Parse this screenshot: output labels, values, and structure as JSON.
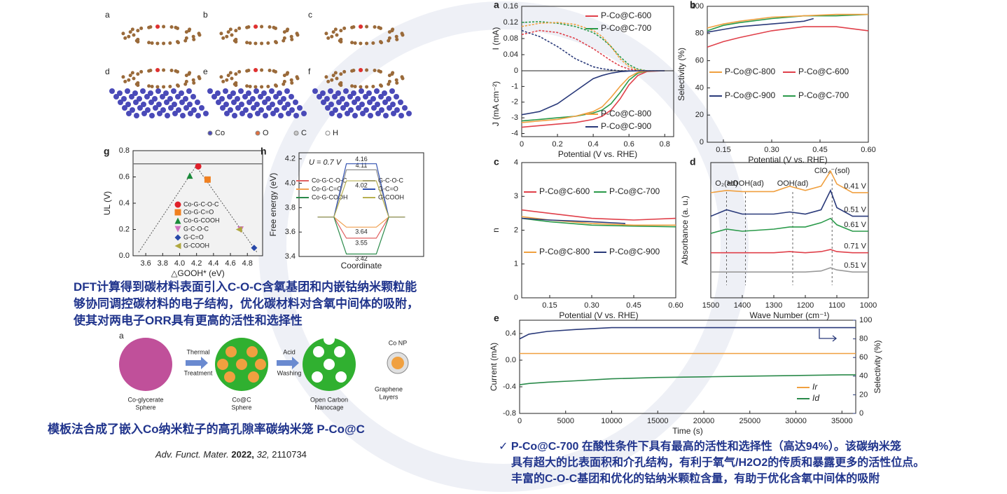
{
  "structures": {
    "panels": [
      "a",
      "b",
      "c",
      "d",
      "e",
      "f"
    ],
    "legend": [
      "Co",
      "O",
      "C",
      "H"
    ]
  },
  "caption1": [
    "DFT计算得到碳材料表面引入C-O-C含氧基团和内嵌钴纳米颗粒能",
    "够协同调控碳材料的电子结构，优化碳材料对含氧中间体的吸附，",
    "使其对两电子ORR具有更高的活性和选择性"
  ],
  "synthesis": {
    "panel": "a",
    "step1": [
      "Thermal",
      "Treatment"
    ],
    "step2": [
      "Acid",
      "Washing"
    ],
    "inset": "Co NP",
    "stages": [
      [
        "Co-glycerate",
        "Sphere"
      ],
      [
        "Co@C",
        "Sphere"
      ],
      [
        "Open Carbon",
        "Nanocage"
      ],
      [
        "Graphene",
        "Layers"
      ]
    ]
  },
  "caption2": "模板法合成了嵌入Co纳米粒子的高孔隙率碳纳米笼 P-Co@C",
  "citation": {
    "journal": "Adv. Funct. Mater.",
    "year": "2022,",
    "volume": "32,",
    "article": "2110734"
  },
  "conclusion": [
    "✓ P-Co@C-700 在酸性条件下具有最高的活性和选择性（高达94%）。该碳纳米笼",
    "具有超大的比表面积和介孔结构，有利于氧气/H2O2的传质和暴露更多的活性位点。",
    "丰富的C-O-C基团和优化的钴纳米颗粒含量，有助于优化含氧中间体的吸附"
  ],
  "charts": [
    {
      "type": "scatter",
      "panel": "g",
      "xlabel": "△GOOH* (eV)",
      "ylabel": "UL (V)",
      "xlim": [
        3.45,
        4.98
      ],
      "ylim": [
        0,
        0.8
      ],
      "xticks": [
        3.6,
        3.8,
        {
          "value": 4,
          "label": "4.0"
        },
        4.2,
        4.4,
        4.6,
        4.8
      ],
      "yticks": [
        {
          "value": 0,
          "label": "0.0"
        },
        0.2,
        0.4,
        0.6,
        0.8
      ],
      "reference_line": 0.7,
      "series": [
        {
          "name": "Co-G-C-O-C",
          "color": "#e0202a",
          "marker": "circle",
          "x": 4.22,
          "y": 0.68
        },
        {
          "name": "Co-G-C=O",
          "color": "#f08020",
          "marker": "square",
          "x": 4.33,
          "y": 0.58
        },
        {
          "name": "Co-G-COOH",
          "color": "#1a8a3a",
          "marker": "triangle",
          "x": 4.12,
          "y": 0.61
        },
        {
          "name": "G-C-O-C",
          "color": "#d070c0",
          "marker": "triangle-down",
          "x": 4.72,
          "y": 0.2
        },
        {
          "name": "G-C=O",
          "color": "#2848a8",
          "marker": "diamond",
          "x": 4.88,
          "y": 0.06
        },
        {
          "name": "G-COOH",
          "color": "#b0a840",
          "marker": "triangle-left",
          "x": 4.7,
          "y": 0.2
        }
      ]
    },
    {
      "type": "levels",
      "panel": "h",
      "xlabel": "Coordinate",
      "ylabel": "Free energy (eV)",
      "annotation": "U = 0.7 V",
      "ylim": [
        3.4,
        4.25
      ],
      "yticks": [
        3.4,
        3.6,
        3.8,
        {
          "value": 4,
          "label": "4.0"
        },
        4.2
      ],
      "series": [
        {
          "name": "Co-G-C-O-C",
          "color": "#e06060",
          "value": 3.55
        },
        {
          "name": "Co-G-C=O",
          "color": "#f0a050",
          "value": 3.64
        },
        {
          "name": "Co-G-COOH",
          "color": "#2a8a4a",
          "value": 3.42
        },
        {
          "name": "G-C-O-C",
          "color": "#909090",
          "value": 4.11
        },
        {
          "name": "G-C=O",
          "color": "#3050b0",
          "value": 4.16
        },
        {
          "name": "G-COOH",
          "color": "#b8b050",
          "value": 4.02
        }
      ]
    },
    {
      "type": "line",
      "panel": "a",
      "ylabel": "I (mA)",
      "xlim": [
        0,
        0.85
      ],
      "ylim": [
        0,
        0.16
      ],
      "yticks": [
        0.04,
        0.08,
        0.12,
        0.16
      ],
      "dash": true,
      "series": [
        {
          "color": "#e0404a",
          "x": [
            0,
            0.1,
            0.2,
            0.3,
            0.4,
            0.45,
            0.5,
            0.55,
            0.6,
            0.65,
            0.7,
            0.8
          ],
          "values": [
            0.09,
            0.1,
            0.095,
            0.08,
            0.055,
            0.04,
            0.025,
            0.012,
            0.004,
            0.001,
            0,
            0
          ]
        },
        {
          "color": "#2a9a4a",
          "x": [
            0,
            0.1,
            0.2,
            0.3,
            0.4,
            0.45,
            0.5,
            0.55,
            0.6,
            0.65,
            0.7,
            0.8
          ],
          "values": [
            0.12,
            0.122,
            0.118,
            0.11,
            0.095,
            0.08,
            0.06,
            0.035,
            0.015,
            0.004,
            0,
            0
          ]
        },
        {
          "color": "#f0a040",
          "x": [
            0,
            0.1,
            0.2,
            0.3,
            0.4,
            0.45,
            0.5,
            0.55,
            0.6,
            0.65,
            0.7,
            0.8
          ],
          "values": [
            0.11,
            0.118,
            0.12,
            0.115,
            0.1,
            0.085,
            0.06,
            0.03,
            0.01,
            0.002,
            0,
            0
          ]
        },
        {
          "color": "#2a3a7a",
          "x": [
            0,
            0.1,
            0.2,
            0.3,
            0.4,
            0.45,
            0.5,
            0.55,
            0.6,
            0.65,
            0.7,
            0.8
          ],
          "values": [
            0.1,
            0.085,
            0.06,
            0.03,
            0.01,
            0.005,
            0.002,
            0,
            0,
            0,
            0,
            0
          ]
        }
      ]
    },
    {
      "type": "line",
      "ylabel": "J (mA cm⁻²)",
      "xlabel": "Potential (V vs. RHE)",
      "xlim": [
        0,
        0.85
      ],
      "ylim": [
        -4.2,
        0
      ],
      "xticks": [
        0,
        0.2,
        0.4,
        0.6,
        0.8
      ],
      "yticks": [
        0,
        -1,
        -2,
        -3,
        -4
      ],
      "series": [
        {
          "name": "P-Co@C-600",
          "color": "#e0404a",
          "x": [
            0,
            0.1,
            0.2,
            0.3,
            0.4,
            0.45,
            0.5,
            0.55,
            0.6,
            0.65,
            0.7,
            0.8
          ],
          "values": [
            -3.6,
            -3.5,
            -3.4,
            -3.3,
            -3.1,
            -2.9,
            -2.5,
            -1.8,
            -0.9,
            -0.3,
            -0.05,
            0
          ]
        },
        {
          "name": "P-Co@C-700",
          "color": "#2a9a4a",
          "x": [
            0,
            0.1,
            0.2,
            0.3,
            0.4,
            0.45,
            0.5,
            0.55,
            0.6,
            0.65,
            0.7,
            0.8
          ],
          "values": [
            -3.2,
            -3.1,
            -3,
            -2.9,
            -2.7,
            -2.5,
            -2.1,
            -1.4,
            -0.6,
            -0.15,
            -0.02,
            0
          ]
        },
        {
          "name": "P-Co@C-800",
          "color": "#f0a040",
          "x": [
            0,
            0.1,
            0.2,
            0.3,
            0.4,
            0.45,
            0.5,
            0.55,
            0.6,
            0.65,
            0.7,
            0.8
          ],
          "values": [
            -3.3,
            -3.2,
            -3.1,
            -2.9,
            -2.6,
            -2.3,
            -1.7,
            -1,
            -0.4,
            -0.1,
            -0.01,
            0
          ]
        },
        {
          "name": "P-Co@C-900",
          "color": "#2a3a7a",
          "x": [
            0,
            0.1,
            0.2,
            0.3,
            0.4,
            0.45,
            0.5,
            0.55,
            0.6,
            0.65,
            0.7,
            0.8
          ],
          "values": [
            -2.8,
            -2.6,
            -2.1,
            -1.3,
            -0.5,
            -0.3,
            -0.15,
            -0.06,
            -0.02,
            0,
            0,
            0
          ]
        }
      ]
    },
    {
      "type": "line",
      "panel": "b",
      "xlabel": "Potential (V vs. RHE)",
      "ylabel": "Selectivity (%)",
      "xlim": [
        0.1,
        0.6
      ],
      "ylim": [
        0,
        100
      ],
      "xticks": [
        0.15,
        {
          "value": 0.3,
          "label": "0.30"
        },
        0.45,
        {
          "value": 0.6,
          "label": "0.60"
        }
      ],
      "yticks": [
        0,
        20,
        40,
        60,
        80,
        100
      ],
      "series": [
        {
          "name": "P-Co@C-600",
          "color": "#e0404a",
          "x": [
            0.1,
            0.15,
            0.2,
            0.3,
            0.4,
            0.5,
            0.6
          ],
          "values": [
            70,
            74,
            77,
            82,
            85,
            85,
            82
          ]
        },
        {
          "name": "P-Co@C-700",
          "color": "#2a9a4a",
          "x": [
            0.1,
            0.15,
            0.2,
            0.3,
            0.4,
            0.5,
            0.6
          ],
          "values": [
            82,
            86,
            88,
            91,
            93,
            93,
            94
          ]
        },
        {
          "name": "P-Co@C-800",
          "color": "#f0a040",
          "x": [
            0.1,
            0.15,
            0.2,
            0.3,
            0.4,
            0.5,
            0.6
          ],
          "values": [
            84,
            87,
            89,
            92,
            93,
            94,
            94
          ]
        },
        {
          "name": "P-Co@C-900",
          "color": "#2a3a7a",
          "x": [
            0.1,
            0.15,
            0.2,
            0.3,
            0.4,
            0.43
          ],
          "values": [
            81,
            83,
            85,
            87,
            89,
            91
          ]
        }
      ]
    },
    {
      "type": "line",
      "panel": "c",
      "xlabel": "Potential (V vs. RHE)",
      "ylabel": "n",
      "xlim": [
        0.05,
        0.6
      ],
      "ylim": [
        0,
        4
      ],
      "xticks": [
        0.15,
        {
          "value": 0.3,
          "label": "0.30"
        },
        0.45,
        {
          "value": 0.6,
          "label": "0.60"
        }
      ],
      "yticks": [
        0,
        1,
        2,
        3,
        4
      ],
      "series": [
        {
          "name": "P-Co@C-600",
          "color": "#e0404a",
          "x": [
            0.05,
            0.15,
            0.3,
            0.45,
            0.6
          ],
          "values": [
            2.6,
            2.5,
            2.35,
            2.3,
            2.35
          ]
        },
        {
          "name": "P-Co@C-700",
          "color": "#2a9a4a",
          "x": [
            0.05,
            0.15,
            0.3,
            0.45,
            0.6
          ],
          "values": [
            2.35,
            2.25,
            2.15,
            2.12,
            2.1
          ]
        },
        {
          "name": "P-Co@C-800",
          "color": "#f0a040",
          "x": [
            0.05,
            0.15,
            0.3,
            0.45,
            0.6
          ],
          "values": [
            2.4,
            2.3,
            2.2,
            2.15,
            2.15
          ]
        },
        {
          "name": "P-Co@C-900",
          "color": "#2a3a7a",
          "x": [
            0.05,
            0.15,
            0.3,
            0.42
          ],
          "values": [
            2.35,
            2.3,
            2.25,
            2.2
          ]
        }
      ]
    },
    {
      "type": "line",
      "panel": "d",
      "xlabel": "Wave Number (cm⁻¹)",
      "ylabel": "Absorbance (a. u.)",
      "xlim": [
        1500,
        1000
      ],
      "ylim": [
        0,
        6.3
      ],
      "xticks": [
        1500,
        1400,
        1300,
        1200,
        1100,
        1000
      ],
      "annotations": [
        {
          "text": "O₂(ad)",
          "x": 1450
        },
        {
          "text": "HOOH(ad)",
          "x": 1390
        },
        {
          "text": "OOH(ad)",
          "x": 1240
        },
        {
          "text": "ClO₄⁻(sol)",
          "x": 1115
        }
      ],
      "series": [
        {
          "name": "0.41 V",
          "color": "#f0a040",
          "x": [
            1500,
            1450,
            1400,
            1300,
            1250,
            1200,
            1150,
            1120,
            1100,
            1050,
            1000
          ],
          "values": [
            4.9,
            5,
            4.95,
            4.95,
            5.2,
            5,
            5.2,
            5.9,
            5.3,
            4.9,
            4.9
          ]
        },
        {
          "name": "0.51 V",
          "color": "#2a3a7a",
          "x": [
            1500,
            1450,
            1400,
            1300,
            1250,
            1200,
            1150,
            1120,
            1100,
            1050,
            1000
          ],
          "values": [
            3.8,
            4.1,
            3.9,
            3.9,
            4,
            3.9,
            4.1,
            5,
            4.2,
            3.8,
            3.8
          ]
        },
        {
          "name": "0.61 V",
          "color": "#2a9a4a",
          "x": [
            1500,
            1450,
            1400,
            1300,
            1250,
            1200,
            1150,
            1120,
            1100,
            1050,
            1000
          ],
          "values": [
            3,
            3.2,
            3.1,
            3.2,
            3.3,
            3.3,
            3.5,
            3.7,
            3.4,
            3.1,
            3.1
          ]
        },
        {
          "name": "0.71 V",
          "color": "#e0404a",
          "x": [
            1500,
            1450,
            1400,
            1300,
            1250,
            1200,
            1150,
            1120,
            1100,
            1050,
            1000
          ],
          "values": [
            2.1,
            2.1,
            2.1,
            2.1,
            2.15,
            2.1,
            2.15,
            2.25,
            2.15,
            2.1,
            2.1
          ]
        },
        {
          "name": "0.51 V",
          "color": "#9a9a9a",
          "x": [
            1500,
            1450,
            1400,
            1300,
            1250,
            1200,
            1150,
            1120,
            1100,
            1050,
            1000
          ],
          "values": [
            1.2,
            1.2,
            1.2,
            1.2,
            1.2,
            1.2,
            1.25,
            1.4,
            1.3,
            1.2,
            1.2
          ]
        }
      ]
    },
    {
      "type": "line",
      "panel": "e",
      "xlabel": "Time (s)",
      "ylabel": "Current (mA)",
      "y2label": "Selectivity (%)",
      "xlim": [
        0,
        36500
      ],
      "ylim": [
        -0.8,
        0.6
      ],
      "y2lim": [
        0,
        100
      ],
      "xticks": [
        0,
        5000,
        10000,
        15000,
        20000,
        25000,
        30000,
        35000
      ],
      "yticks": [
        -0.8,
        -0.4,
        {
          "value": 0,
          "label": "0.0"
        },
        0.4
      ],
      "y2ticks": [
        0,
        20,
        40,
        60,
        80,
        100
      ],
      "series": [
        {
          "name": "Ir",
          "color": "#f0a040",
          "x": [
            0,
            1000,
            3000,
            6000,
            10000,
            15000,
            20000,
            25000,
            30000,
            35000,
            36500
          ],
          "values": [
            0.1,
            0.1,
            0.1,
            0.1,
            0.1,
            0.1,
            0.1,
            0.1,
            0.1,
            0.1,
            0.1
          ]
        },
        {
          "name": "Id",
          "color": "#2a8a4a",
          "x": [
            0,
            1000,
            3000,
            6000,
            10000,
            15000,
            20000,
            25000,
            30000,
            35000,
            36500
          ],
          "values": [
            -0.37,
            -0.35,
            -0.33,
            -0.31,
            -0.28,
            -0.26,
            -0.25,
            -0.24,
            -0.23,
            -0.22,
            -0.22
          ]
        },
        {
          "axis": "y2",
          "color": "#2a3a7a",
          "x": [
            0,
            1000,
            3000,
            6000,
            10000,
            15000,
            20000,
            25000,
            30000,
            35000,
            36500
          ],
          "values": [
            80,
            85,
            88,
            90,
            92,
            92,
            92,
            92,
            92,
            92,
            92
          ]
        }
      ]
    }
  ]
}
